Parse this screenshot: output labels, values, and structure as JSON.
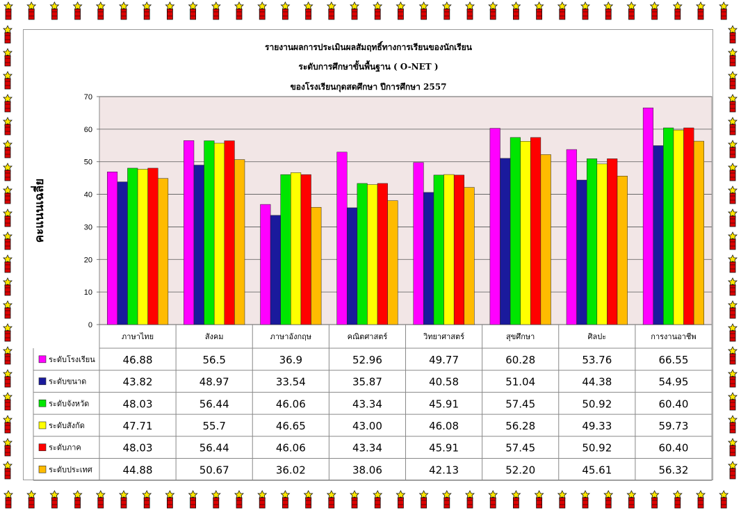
{
  "chart_data": {
    "type": "bar",
    "title": [
      "รายงานผลการประเมินผลสัมฤทธิ์ทางการเรียนของนักเรียน",
      "ระดับการศึกษาขั้นพื้นฐาน ( O-NET )",
      "ของโรงเรียนกุดสดศึกษา ปีการศึกษา 2557"
    ],
    "ylabel": "คะแนนเฉลี่ย",
    "ylim": [
      0,
      70
    ],
    "yticks": [
      0,
      10,
      20,
      30,
      40,
      50,
      60,
      70
    ],
    "grid": true,
    "legend": "data-table-left",
    "plot_background": "#f2e6e6",
    "categories": [
      "ภาษาไทย",
      "สังคม",
      "ภาษาอังกฤษ",
      "คณิตศาสตร์",
      "วิทยาศาสตร์",
      "สุขศึกษา",
      "ศิลปะ",
      "การงานอาชีพ"
    ],
    "series": [
      {
        "name": "ระดับโรงเรียน",
        "color": "#ff00ff",
        "values": [
          46.88,
          56.5,
          36.9,
          52.96,
          49.77,
          60.28,
          53.76,
          66.55
        ],
        "labels": [
          "46.88",
          "56.5",
          "36.9",
          "52.96",
          "49.77",
          "60.28",
          "53.76",
          "66.55"
        ]
      },
      {
        "name": "ระดับขนาด",
        "color": "#1a1a9c",
        "values": [
          43.82,
          48.97,
          33.54,
          35.87,
          40.58,
          51.04,
          44.38,
          54.95
        ],
        "labels": [
          "43.82",
          "48.97",
          "33.54",
          "35.87",
          "40.58",
          "51.04",
          "44.38",
          "54.95"
        ]
      },
      {
        "name": "ระดับจังหวัด",
        "color": "#00e600",
        "values": [
          48.03,
          56.44,
          46.06,
          43.34,
          45.91,
          57.45,
          50.92,
          60.4
        ],
        "labels": [
          "48.03",
          "56.44",
          "46.06",
          "43.34",
          "45.91",
          "57.45",
          "50.92",
          "60.40"
        ]
      },
      {
        "name": "ระดับสังกัด",
        "color": "#ffff00",
        "values": [
          47.71,
          55.7,
          46.65,
          43.0,
          46.08,
          56.28,
          49.33,
          59.73
        ],
        "labels": [
          "47.71",
          "55.7",
          "46.65",
          "43.00",
          "46.08",
          "56.28",
          "49.33",
          "59.73"
        ]
      },
      {
        "name": "ระดับภาค",
        "color": "#ff0000",
        "values": [
          48.03,
          56.44,
          46.06,
          43.34,
          45.91,
          57.45,
          50.92,
          60.4
        ],
        "labels": [
          "48.03",
          "56.44",
          "46.06",
          "43.34",
          "45.91",
          "57.45",
          "50.92",
          "60.40"
        ]
      },
      {
        "name": "ระดับประเทศ",
        "color": "#ffbb00",
        "values": [
          44.88,
          50.67,
          36.02,
          38.06,
          42.13,
          52.2,
          45.61,
          56.32
        ],
        "labels": [
          "44.88",
          "50.67",
          "36.02",
          "38.06",
          "42.13",
          "52.20",
          "45.61",
          "56.32"
        ]
      }
    ]
  }
}
